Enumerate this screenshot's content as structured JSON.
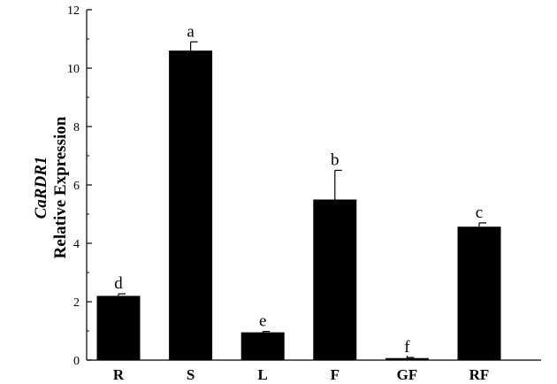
{
  "chart_data": {
    "type": "bar",
    "title": "",
    "ylabel_gene": "CaRDR1",
    "ylabel": "Relative Expression",
    "xlabel": "",
    "ylim": [
      0,
      12
    ],
    "yticks": [
      0,
      2,
      4,
      6,
      8,
      10,
      12
    ],
    "categories": [
      "R",
      "S",
      "L",
      "F",
      "GF",
      "RF"
    ],
    "values": [
      2.2,
      10.6,
      0.95,
      5.5,
      0.07,
      4.57
    ],
    "errors": [
      0.07,
      0.3,
      0.03,
      1.0,
      0.02,
      0.13
    ],
    "significance": [
      "d",
      "a",
      "e",
      "b",
      "f",
      "c"
    ],
    "bar_color": "#000000",
    "legend": "none",
    "grid": false
  }
}
